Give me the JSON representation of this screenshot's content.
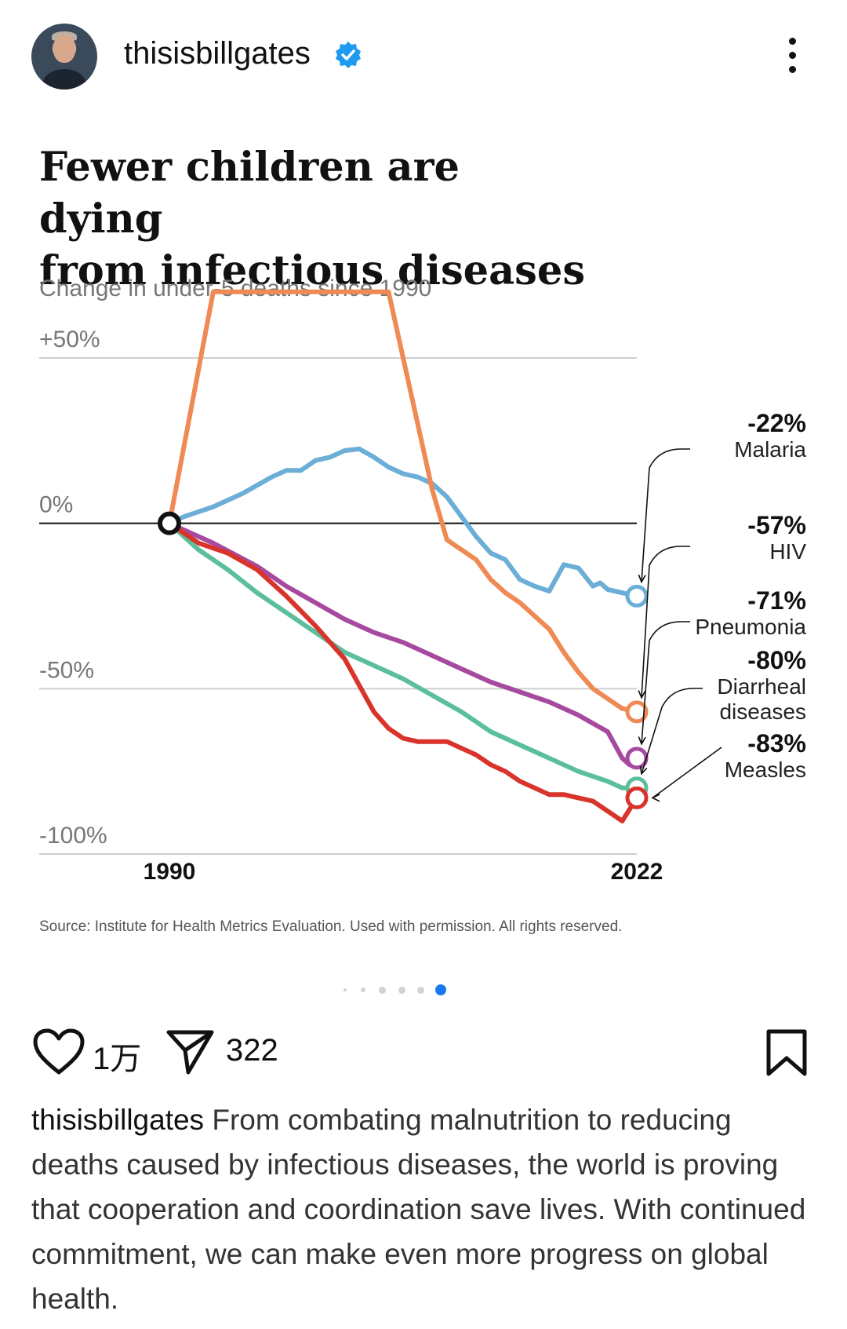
{
  "post_header": {
    "username": "thisisbillgates",
    "verified": true,
    "avatar_icon": "avatar-photo",
    "menu_icon": "more-vertical-icon"
  },
  "chart_data": {
    "type": "line",
    "title": "Fewer children are dying from infectious diseases",
    "title_lines": [
      "Fewer children are dying",
      "from infectious diseases"
    ],
    "subtitle": "Change in under-5 deaths since 1990",
    "y_tick_labels": [
      "+50%",
      "0%",
      "-50%",
      "-100%"
    ],
    "y_ticks": [
      50,
      0,
      -50,
      -100
    ],
    "ylim": [
      -100,
      50
    ],
    "x_tick_labels": [
      "1990",
      "2022"
    ],
    "xlim": [
      1990,
      2022
    ],
    "grid": true,
    "source": "Source: Institute for Health Metrics Evaluation. Used with permission. All rights reserved.",
    "series": [
      {
        "name": "Malaria",
        "end_label": "-22%",
        "color": "#6baed6",
        "points": [
          [
            1990,
            0
          ],
          [
            1991,
            2
          ],
          [
            1993,
            5
          ],
          [
            1995,
            9
          ],
          [
            1997,
            14
          ],
          [
            1998,
            16
          ],
          [
            1999,
            16
          ],
          [
            2000,
            19
          ],
          [
            2001,
            20
          ],
          [
            2002,
            22
          ],
          [
            2003,
            22.5
          ],
          [
            2004,
            20
          ],
          [
            2005,
            17
          ],
          [
            2006,
            15
          ],
          [
            2007,
            14
          ],
          [
            2008,
            12
          ],
          [
            2009,
            8
          ],
          [
            2010,
            2
          ],
          [
            2011,
            -4
          ],
          [
            2012,
            -9
          ],
          [
            2013,
            -11
          ],
          [
            2014,
            -17
          ],
          [
            2015,
            -19
          ],
          [
            2016,
            -20.5
          ],
          [
            2017,
            -12.5
          ],
          [
            2018,
            -13.5
          ],
          [
            2019,
            -19
          ],
          [
            2019.5,
            -18
          ],
          [
            2020,
            -20
          ],
          [
            2022,
            -22
          ]
        ]
      },
      {
        "name": "HIV",
        "end_label": "-57%",
        "color": "#f08a55",
        "points": [
          [
            1990,
            0
          ],
          [
            1993,
            70
          ],
          [
            2005,
            70
          ],
          [
            2008,
            10
          ],
          [
            2009,
            -5
          ],
          [
            2011,
            -11
          ],
          [
            2012,
            -17
          ],
          [
            2013,
            -21
          ],
          [
            2014,
            -24
          ],
          [
            2015,
            -28
          ],
          [
            2016,
            -32
          ],
          [
            2017,
            -39
          ],
          [
            2018,
            -45
          ],
          [
            2019,
            -50
          ],
          [
            2020,
            -53
          ],
          [
            2021,
            -56
          ],
          [
            2022,
            -57
          ]
        ]
      },
      {
        "name": "Pneumonia",
        "end_label": "-71%",
        "color": "#a64aa0",
        "points": [
          [
            1990,
            0
          ],
          [
            1993,
            -6
          ],
          [
            1996,
            -13
          ],
          [
            1998,
            -19
          ],
          [
            2000,
            -24
          ],
          [
            2002,
            -29
          ],
          [
            2004,
            -33
          ],
          [
            2006,
            -36
          ],
          [
            2008,
            -40
          ],
          [
            2010,
            -44
          ],
          [
            2012,
            -48
          ],
          [
            2014,
            -51
          ],
          [
            2016,
            -54
          ],
          [
            2018,
            -58
          ],
          [
            2020,
            -63
          ],
          [
            2021,
            -71
          ],
          [
            2021.5,
            -73
          ],
          [
            2022,
            -71
          ]
        ]
      },
      {
        "name": "Diarrheal diseases",
        "end_label": "-80%",
        "color": "#5cbf9c",
        "points": [
          [
            1990,
            0
          ],
          [
            1992,
            -8
          ],
          [
            1994,
            -14
          ],
          [
            1996,
            -21
          ],
          [
            1998,
            -27
          ],
          [
            2000,
            -33
          ],
          [
            2002,
            -39
          ],
          [
            2004,
            -43
          ],
          [
            2006,
            -47
          ],
          [
            2008,
            -52
          ],
          [
            2010,
            -57
          ],
          [
            2012,
            -63
          ],
          [
            2014,
            -67
          ],
          [
            2016,
            -71
          ],
          [
            2018,
            -75
          ],
          [
            2020,
            -78
          ],
          [
            2021,
            -80
          ],
          [
            2022,
            -80
          ]
        ]
      },
      {
        "name": "Measles",
        "end_label": "-83%",
        "color": "#d9342b",
        "points": [
          [
            1990,
            0
          ],
          [
            1992,
            -6
          ],
          [
            1994,
            -9
          ],
          [
            1996,
            -14
          ],
          [
            1998,
            -22
          ],
          [
            2000,
            -31
          ],
          [
            2002,
            -41
          ],
          [
            2003,
            -49
          ],
          [
            2004,
            -57
          ],
          [
            2005,
            -62
          ],
          [
            2006,
            -65
          ],
          [
            2007,
            -66
          ],
          [
            2008,
            -66
          ],
          [
            2009,
            -66
          ],
          [
            2010,
            -68
          ],
          [
            2011,
            -70
          ],
          [
            2012,
            -73
          ],
          [
            2013,
            -75
          ],
          [
            2014,
            -78
          ],
          [
            2015,
            -80
          ],
          [
            2016,
            -82
          ],
          [
            2017,
            -82
          ],
          [
            2018,
            -83
          ],
          [
            2019,
            -84
          ],
          [
            2020,
            -87
          ],
          [
            2021,
            -90
          ],
          [
            2022,
            -83
          ]
        ]
      }
    ],
    "labels": [
      {
        "series": "Malaria",
        "pct": "-22%",
        "name_lines": [
          "Malaria"
        ]
      },
      {
        "series": "HIV",
        "pct": "-57%",
        "name_lines": [
          "HIV"
        ]
      },
      {
        "series": "Pneumonia",
        "pct": "-71%",
        "name_lines": [
          "Pneumonia"
        ]
      },
      {
        "series": "Diarrheal diseases",
        "pct": "-80%",
        "name_lines": [
          "Diarrheal",
          "diseases"
        ]
      },
      {
        "series": "Measles",
        "pct": "-83%",
        "name_lines": [
          "Measles"
        ]
      }
    ]
  },
  "carousel": {
    "count": 6,
    "active": 6,
    "active_color": "#1877f2"
  },
  "actions": {
    "like_icon": "heart-icon",
    "like_count": "1万",
    "share_icon": "send-icon",
    "share_count": "322",
    "save_icon": "bookmark-icon"
  },
  "caption": {
    "username": "thisisbillgates",
    "text": "From combating malnutrition to reducing deaths caused by infectious diseases, the world is proving that cooperation and coordination save lives. With continued commitment, we can make even more progress on global health."
  }
}
